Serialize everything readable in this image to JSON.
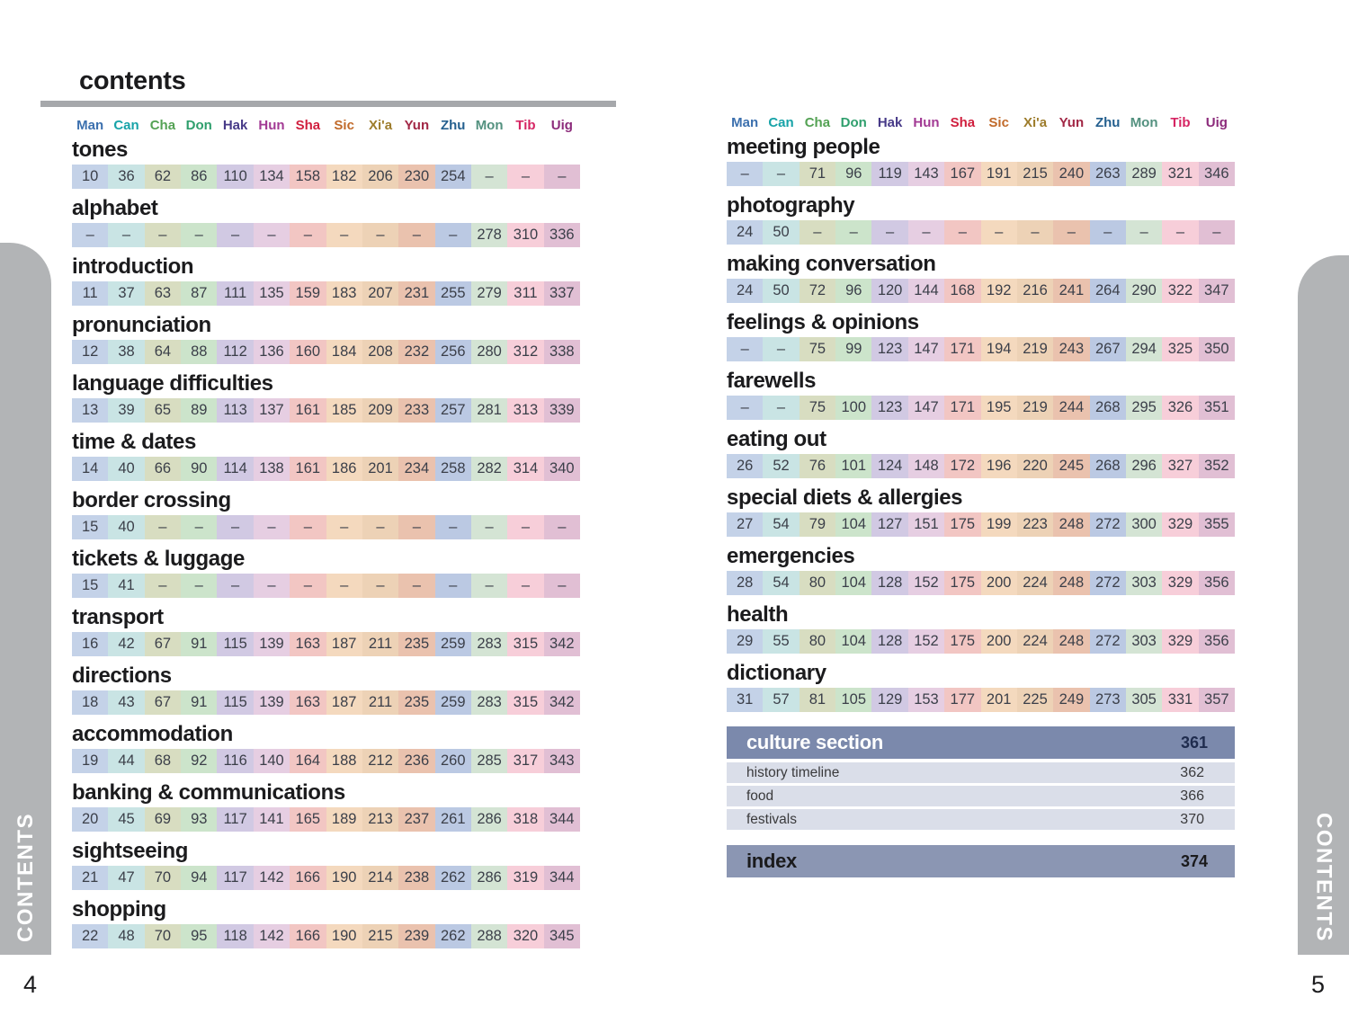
{
  "page": {
    "title": "contents",
    "side_tab_label": "CONTENTS",
    "left_page_number": "4",
    "right_page_number": "5"
  },
  "columns": {
    "labels": [
      "Man",
      "Can",
      "Cha",
      "Don",
      "Hak",
      "Hun",
      "Sha",
      "Sic",
      "Xi'a",
      "Yun",
      "Zhu",
      "Mon",
      "Tib",
      "Uig"
    ],
    "label_colors": [
      "#3c70ae",
      "#17a3a8",
      "#54a254",
      "#2f9f6d",
      "#473a88",
      "#a23a94",
      "#d01f3e",
      "#c16a2a",
      "#9d7c2b",
      "#a22846",
      "#25608f",
      "#53917f",
      "#d62563",
      "#8c2b7b"
    ],
    "cell_colors": [
      "#c4d2e8",
      "#c9e4e4",
      "#d8ddc1",
      "#cce4cb",
      "#d1c9e3",
      "#e6cee2",
      "#f2c6c3",
      "#f4d9be",
      "#edd2b6",
      "#eac2ae",
      "#bbc9e3",
      "#d4e4d4",
      "#f7ced9",
      "#e1bfd4"
    ]
  },
  "left_sections": [
    {
      "title": "tones",
      "pages": [
        "10",
        "36",
        "62",
        "86",
        "110",
        "134",
        "158",
        "182",
        "206",
        "230",
        "254",
        "–",
        "–",
        "–"
      ]
    },
    {
      "title": "alphabet",
      "pages": [
        "–",
        "–",
        "–",
        "–",
        "–",
        "–",
        "–",
        "–",
        "–",
        "–",
        "–",
        "278",
        "310",
        "336"
      ]
    },
    {
      "title": "introduction",
      "pages": [
        "11",
        "37",
        "63",
        "87",
        "111",
        "135",
        "159",
        "183",
        "207",
        "231",
        "255",
        "279",
        "311",
        "337"
      ]
    },
    {
      "title": "pronunciation",
      "pages": [
        "12",
        "38",
        "64",
        "88",
        "112",
        "136",
        "160",
        "184",
        "208",
        "232",
        "256",
        "280",
        "312",
        "338"
      ]
    },
    {
      "title": "language difficulties",
      "pages": [
        "13",
        "39",
        "65",
        "89",
        "113",
        "137",
        "161",
        "185",
        "209",
        "233",
        "257",
        "281",
        "313",
        "339"
      ]
    },
    {
      "title": "time & dates",
      "pages": [
        "14",
        "40",
        "66",
        "90",
        "114",
        "138",
        "161",
        "186",
        "201",
        "234",
        "258",
        "282",
        "314",
        "340"
      ]
    },
    {
      "title": "border crossing",
      "pages": [
        "15",
        "40",
        "–",
        "–",
        "–",
        "–",
        "–",
        "–",
        "–",
        "–",
        "–",
        "–",
        "–",
        "–"
      ]
    },
    {
      "title": "tickets & luggage",
      "pages": [
        "15",
        "41",
        "–",
        "–",
        "–",
        "–",
        "–",
        "–",
        "–",
        "–",
        "–",
        "–",
        "–",
        "–"
      ]
    },
    {
      "title": "transport",
      "pages": [
        "16",
        "42",
        "67",
        "91",
        "115",
        "139",
        "163",
        "187",
        "211",
        "235",
        "259",
        "283",
        "315",
        "342"
      ]
    },
    {
      "title": "directions",
      "pages": [
        "18",
        "43",
        "67",
        "91",
        "115",
        "139",
        "163",
        "187",
        "211",
        "235",
        "259",
        "283",
        "315",
        "342"
      ]
    },
    {
      "title": "accommodation",
      "pages": [
        "19",
        "44",
        "68",
        "92",
        "116",
        "140",
        "164",
        "188",
        "212",
        "236",
        "260",
        "285",
        "317",
        "343"
      ]
    },
    {
      "title": "banking & communications",
      "pages": [
        "20",
        "45",
        "69",
        "93",
        "117",
        "141",
        "165",
        "189",
        "213",
        "237",
        "261",
        "286",
        "318",
        "344"
      ]
    },
    {
      "title": "sightseeing",
      "pages": [
        "21",
        "47",
        "70",
        "94",
        "117",
        "142",
        "166",
        "190",
        "214",
        "238",
        "262",
        "286",
        "319",
        "344"
      ]
    },
    {
      "title": "shopping",
      "pages": [
        "22",
        "48",
        "70",
        "95",
        "118",
        "142",
        "166",
        "190",
        "215",
        "239",
        "262",
        "288",
        "320",
        "345"
      ]
    }
  ],
  "right_sections": [
    {
      "title": "meeting people",
      "pages": [
        "–",
        "–",
        "71",
        "96",
        "119",
        "143",
        "167",
        "191",
        "215",
        "240",
        "263",
        "289",
        "321",
        "346"
      ]
    },
    {
      "title": "photography",
      "pages": [
        "24",
        "50",
        "–",
        "–",
        "–",
        "–",
        "–",
        "–",
        "–",
        "–",
        "–",
        "–",
        "–",
        "–"
      ]
    },
    {
      "title": "making conversation",
      "pages": [
        "24",
        "50",
        "72",
        "96",
        "120",
        "144",
        "168",
        "192",
        "216",
        "241",
        "264",
        "290",
        "322",
        "347"
      ]
    },
    {
      "title": "feelings & opinions",
      "pages": [
        "–",
        "–",
        "75",
        "99",
        "123",
        "147",
        "171",
        "194",
        "219",
        "243",
        "267",
        "294",
        "325",
        "350"
      ]
    },
    {
      "title": "farewells",
      "pages": [
        "–",
        "–",
        "75",
        "100",
        "123",
        "147",
        "171",
        "195",
        "219",
        "244",
        "268",
        "295",
        "326",
        "351"
      ]
    },
    {
      "title": "eating out",
      "pages": [
        "26",
        "52",
        "76",
        "101",
        "124",
        "148",
        "172",
        "196",
        "220",
        "245",
        "268",
        "296",
        "327",
        "352"
      ]
    },
    {
      "title": "special diets & allergies",
      "pages": [
        "27",
        "54",
        "79",
        "104",
        "127",
        "151",
        "175",
        "199",
        "223",
        "248",
        "272",
        "300",
        "329",
        "355"
      ]
    },
    {
      "title": "emergencies",
      "pages": [
        "28",
        "54",
        "80",
        "104",
        "128",
        "152",
        "175",
        "200",
        "224",
        "248",
        "272",
        "303",
        "329",
        "356"
      ]
    },
    {
      "title": "health",
      "pages": [
        "29",
        "55",
        "80",
        "104",
        "128",
        "152",
        "175",
        "200",
        "224",
        "248",
        "272",
        "303",
        "329",
        "356"
      ]
    },
    {
      "title": "dictionary",
      "pages": [
        "31",
        "57",
        "81",
        "105",
        "129",
        "153",
        "177",
        "201",
        "225",
        "249",
        "273",
        "305",
        "331",
        "357"
      ]
    }
  ],
  "culture_section": {
    "title": "culture section",
    "page": "361",
    "items": [
      {
        "label": "history timeline",
        "page": "362"
      },
      {
        "label": "food",
        "page": "366"
      },
      {
        "label": "festivals",
        "page": "370"
      }
    ]
  },
  "index_section": {
    "title": "index",
    "page": "374"
  },
  "colors": {
    "tab_gray": "#b2b4b6",
    "rule_gray": "#a6a8ab",
    "culture_bar": "#7b89ac",
    "index_bar": "#8b96b3",
    "culture_row_bg": "#dadee9",
    "bar_page_navy": "#1f2c4e"
  }
}
